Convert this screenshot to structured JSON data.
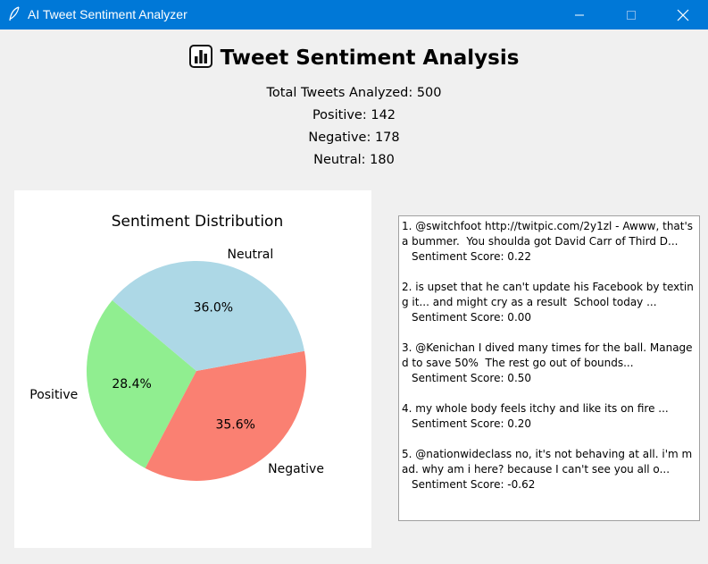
{
  "window": {
    "title": "AI Tweet Sentiment Analyzer"
  },
  "header": {
    "title": "Tweet Sentiment Analysis",
    "icon": "bar-chart-icon"
  },
  "stats": {
    "total": "Total Tweets Analyzed: 500",
    "positive": "Positive: 142",
    "negative": "Negative: 178",
    "neutral": "Neutral: 180"
  },
  "chart_data": {
    "type": "pie",
    "title": "Sentiment Distribution",
    "categories": [
      "Positive",
      "Negative",
      "Neutral"
    ],
    "values": [
      142,
      178,
      180
    ],
    "percent_labels": [
      "28.4%",
      "35.6%",
      "36.0%"
    ],
    "colors": [
      "#90ee90",
      "#fa8072",
      "#add8e6"
    ],
    "start_angle_deg": 140,
    "legend": "none"
  },
  "tweets": [
    {
      "text": "1. @switchfoot http://twitpic.com/2y1zl - Awww, that's a bummer.  You shoulda got David Carr of Third D...",
      "score": "Sentiment Score: 0.22"
    },
    {
      "text": "2. is upset that he can't update his Facebook by texting it... and might cry as a result  School today ...",
      "score": "Sentiment Score: 0.00"
    },
    {
      "text": "3. @Kenichan I dived many times for the ball. Managed to save 50%  The rest go out of bounds...",
      "score": "Sentiment Score: 0.50"
    },
    {
      "text": "4. my whole body feels itchy and like its on fire ...",
      "score": "Sentiment Score: 0.20"
    },
    {
      "text": "5. @nationwideclass no, it's not behaving at all. i'm mad. why am i here? because I can't see you all o...",
      "score": "Sentiment Score: -0.62"
    }
  ]
}
